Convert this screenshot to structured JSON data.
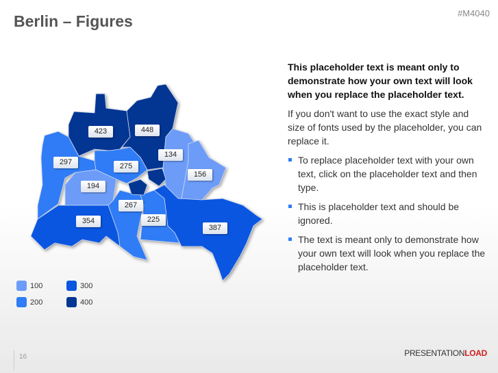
{
  "header": {
    "title": "Berlin – Figures",
    "code": "#M4040"
  },
  "colors": {
    "c100": "#6c9cf8",
    "c200": "#2f7cf6",
    "c300": "#0a56e0",
    "c400": "#033592"
  },
  "map": {
    "districts": [
      {
        "value": "423",
        "level": 400
      },
      {
        "value": "448",
        "level": 400
      },
      {
        "value": "297",
        "level": 200
      },
      {
        "value": "275",
        "level": 200
      },
      {
        "value": "194",
        "level": 100
      },
      {
        "value": "134",
        "level": 100
      },
      {
        "value": "156",
        "level": 100
      },
      {
        "value": "267",
        "level": 200
      },
      {
        "value": "225",
        "level": 200
      },
      {
        "value": "354",
        "level": 300
      },
      {
        "value": "387",
        "level": 300
      }
    ]
  },
  "legend": [
    {
      "label": "100"
    },
    {
      "label": "200"
    },
    {
      "label": "300"
    },
    {
      "label": "400"
    }
  ],
  "text": {
    "heading": "This placeholder text is meant only to demonstrate how your own text will look when you replace the placeholder text.",
    "paragraph": "If you don't want to use the exact style and size of fonts used by the placeholder, you can replace it.",
    "bullets": [
      "To replace placeholder text with your own text, click on the placeholder text and then type.",
      "This is placeholder text and should be ignored.",
      "The text is meant only to demonstrate how your own text will look when you replace the placeholder text."
    ]
  },
  "footer": {
    "page": "16",
    "logo_a": "PRESENTATION",
    "logo_b": "LOAD"
  }
}
